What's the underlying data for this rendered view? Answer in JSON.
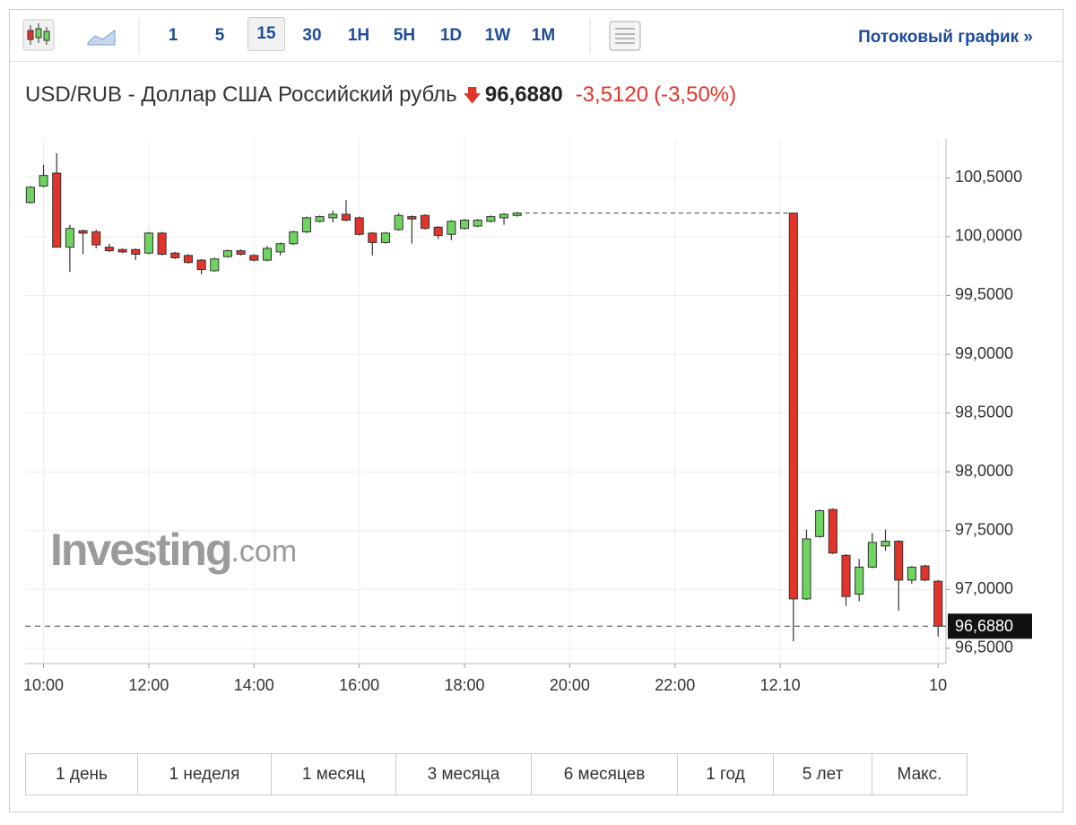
{
  "toolbar": {
    "intervals": [
      "1",
      "5",
      "15",
      "30",
      "1H",
      "5H",
      "1D",
      "1W",
      "1M"
    ],
    "stream_link": "Потоковый график »"
  },
  "header": {
    "title": "USD/RUB - Доллар США Российский рубль",
    "price": "96,6880",
    "change": "-3,5120",
    "change_percent": "(-3,50%)"
  },
  "watermark": {
    "brand": "Investing",
    "suffix": ".com"
  },
  "ranges": [
    "1 день",
    "1 неделя",
    "1 месяц",
    "3 месяца",
    "6 месяцев",
    "1 год",
    "5 лет",
    "Макс."
  ],
  "chart_data": {
    "type": "candlestick",
    "up_color": "#6fd35f",
    "down_color": "#e3342b",
    "grid": true,
    "x": [
      -1,
      0,
      1,
      2,
      3,
      4,
      5,
      6,
      7,
      8,
      9,
      10,
      11,
      12,
      13,
      14,
      15,
      16,
      17,
      18,
      19,
      20,
      21,
      22,
      23,
      24,
      25,
      26,
      27,
      28,
      29,
      30,
      31,
      32,
      33,
      34,
      35,
      36,
      57,
      58,
      59,
      60,
      61,
      62,
      63,
      64,
      65,
      66,
      67,
      68
    ],
    "open": [
      100.29,
      100.43,
      100.54,
      99.91,
      100.05,
      100.04,
      99.91,
      99.89,
      99.89,
      99.86,
      100.03,
      99.86,
      99.84,
      99.8,
      99.71,
      99.83,
      99.88,
      99.84,
      99.8,
      99.87,
      99.94,
      100.04,
      100.13,
      100.16,
      100.19,
      100.16,
      100.03,
      99.95,
      100.06,
      100.17,
      100.18,
      100.08,
      100.02,
      100.07,
      100.09,
      100.13,
      100.16,
      100.18,
      100.2,
      96.92,
      97.45,
      97.68,
      97.29,
      96.96,
      97.19,
      97.37,
      97.41,
      97.08,
      97.2,
      97.07
    ],
    "high": [
      100.43,
      100.61,
      100.71,
      100.1,
      100.06,
      100.06,
      99.94,
      99.9,
      99.9,
      100.04,
      100.04,
      99.87,
      99.85,
      99.81,
      99.82,
      99.89,
      99.89,
      99.85,
      99.92,
      99.95,
      100.05,
      100.17,
      100.18,
      100.22,
      100.31,
      100.17,
      100.04,
      100.04,
      100.2,
      100.18,
      100.19,
      100.09,
      100.14,
      100.15,
      100.15,
      100.18,
      100.2,
      100.21,
      100.2,
      97.51,
      97.68,
      97.69,
      97.3,
      97.26,
      97.48,
      97.51,
      97.42,
      97.2,
      97.21,
      97.08
    ],
    "low": [
      100.28,
      100.42,
      99.91,
      99.7,
      99.85,
      99.9,
      99.87,
      99.86,
      99.8,
      99.85,
      99.84,
      99.81,
      99.77,
      99.68,
      99.7,
      99.82,
      99.84,
      99.79,
      99.79,
      99.84,
      99.93,
      100.03,
      100.12,
      100.12,
      100.13,
      100.01,
      99.84,
      99.94,
      100.05,
      99.94,
      100.06,
      99.98,
      99.97,
      100.06,
      100.08,
      100.12,
      100.1,
      100.17,
      96.56,
      96.91,
      97.44,
      97.3,
      96.86,
      96.9,
      97.18,
      97.33,
      96.82,
      97.05,
      97.07,
      96.6
    ],
    "close": [
      100.42,
      100.52,
      99.91,
      100.07,
      100.03,
      99.93,
      99.88,
      99.87,
      99.85,
      100.03,
      99.85,
      99.82,
      99.78,
      99.72,
      99.81,
      99.88,
      99.85,
      99.8,
      99.9,
      99.94,
      100.04,
      100.16,
      100.17,
      100.19,
      100.14,
      100.02,
      99.95,
      100.03,
      100.18,
      100.15,
      100.07,
      100.01,
      100.13,
      100.14,
      100.14,
      100.17,
      100.19,
      100.2,
      96.92,
      97.43,
      97.67,
      97.31,
      96.94,
      97.19,
      97.4,
      97.41,
      97.08,
      97.19,
      97.08,
      96.688
    ],
    "xlim": [
      -1.4,
      68.6
    ],
    "xticks": [
      {
        "value": 0,
        "label": "10:00"
      },
      {
        "value": 8,
        "label": "12:00"
      },
      {
        "value": 16,
        "label": "14:00"
      },
      {
        "value": 24,
        "label": "16:00"
      },
      {
        "value": 32,
        "label": "18:00"
      },
      {
        "value": 40,
        "label": "20:00"
      },
      {
        "value": 48,
        "label": "22:00"
      },
      {
        "value": 56,
        "label": "12.10"
      },
      {
        "value": 68,
        "label": "10"
      }
    ],
    "ylim": [
      96.37,
      100.83
    ],
    "yticks": [
      {
        "value": 96.5,
        "label": "96,5000"
      },
      {
        "value": 97,
        "label": "97,0000"
      },
      {
        "value": 97.5,
        "label": "97,5000"
      },
      {
        "value": 98,
        "label": "98,0000"
      },
      {
        "value": 98.5,
        "label": "98,5000"
      },
      {
        "value": 99,
        "label": "99,0000"
      },
      {
        "value": 99.5,
        "label": "99,5000"
      },
      {
        "value": 100,
        "label": "100,0000"
      },
      {
        "value": 100.5,
        "label": "100,5000"
      }
    ],
    "last_price": {
      "value": 96.688,
      "label": "96,6880"
    }
  }
}
